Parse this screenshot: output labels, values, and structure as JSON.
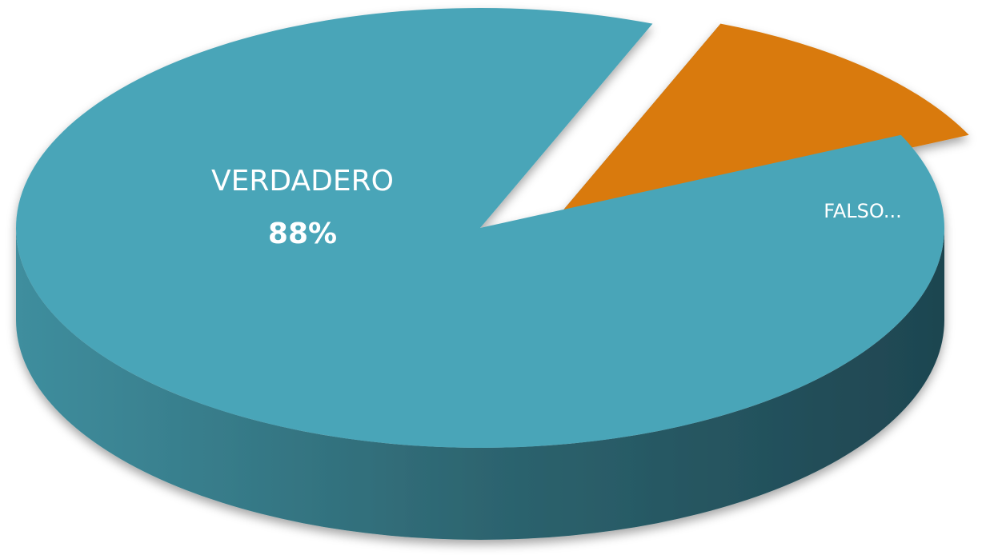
{
  "chart_data": {
    "type": "pie",
    "categories": [
      "VERDADERO",
      "FALSO..."
    ],
    "values": [
      88,
      12
    ],
    "value_labels": [
      "88%",
      null
    ],
    "colors": [
      "#4aa5b8",
      "#d97a0a"
    ]
  }
}
